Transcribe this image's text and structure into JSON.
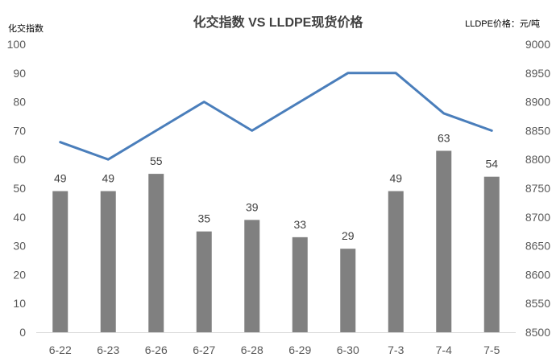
{
  "chart_data": {
    "type": "bar+line",
    "title": "化交指数 VS LLDPE现货价格",
    "ylabel_left": "化交指数",
    "ylabel_right": "LLDPE价格：元/吨",
    "categories": [
      "6-22",
      "6-23",
      "6-26",
      "6-27",
      "6-28",
      "6-29",
      "6-30",
      "7-3",
      "7-4",
      "7-5"
    ],
    "series": [
      {
        "type": "bar",
        "axis": "left",
        "values": [
          49,
          49,
          55,
          35,
          39,
          33,
          29,
          49,
          63,
          54
        ],
        "color": "#808080",
        "data_labels": true
      },
      {
        "type": "line",
        "axis": "right",
        "values": [
          8830,
          8800,
          8850,
          8900,
          8850,
          8900,
          8950,
          8950,
          8880,
          8850
        ],
        "color": "#4a7ebb"
      }
    ],
    "ylim_left": [
      0,
      100
    ],
    "yticks_left": [
      0,
      10,
      20,
      30,
      40,
      50,
      60,
      70,
      80,
      90,
      100
    ],
    "ylim_right": [
      8500,
      9000
    ],
    "yticks_right": [
      8500,
      8550,
      8600,
      8650,
      8700,
      8750,
      8800,
      8850,
      8900,
      8950,
      9000
    ],
    "grid": false,
    "legend": "none"
  }
}
